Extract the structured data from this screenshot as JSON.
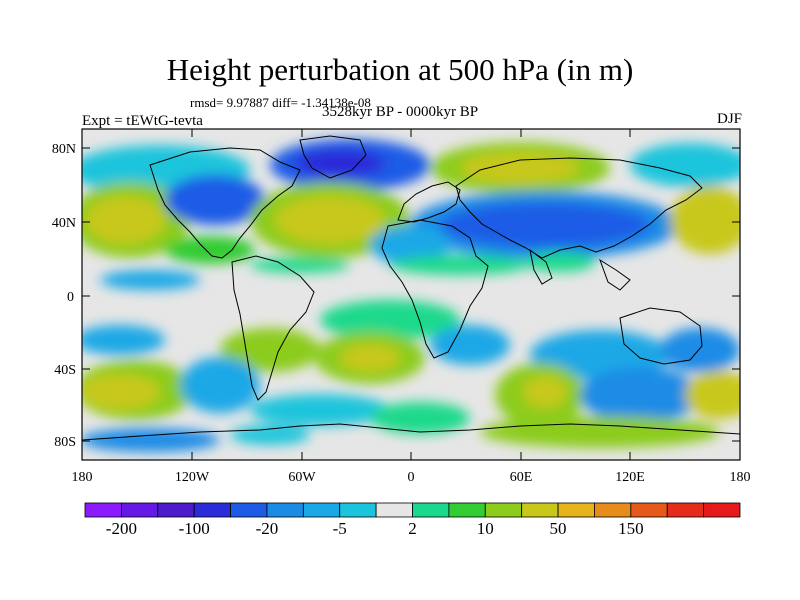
{
  "title": "Height perturbation at 500 hPa (in m)",
  "stats": "rmsd= 9.97887 diff= -1.34138e-08",
  "period": "3528kyr BP - 0000kyr BP",
  "experiment": "Expt = tEWtG-tevta",
  "season": "DJF",
  "lat_labels": [
    "80N",
    "40N",
    "0",
    "40S",
    "80S"
  ],
  "lon_labels": [
    "180",
    "120W",
    "60W",
    "0",
    "60E",
    "120E",
    "180"
  ],
  "colorbar": {
    "colors": [
      "#8c1aff",
      "#6619e6",
      "#4d1acc",
      "#2b2bd9",
      "#1f5ce6",
      "#1a8ce6",
      "#1aa8e6",
      "#1ac4dc",
      "#e6e6e6",
      "#1ad98c",
      "#33cc33",
      "#8ccc1a",
      "#c8c81a",
      "#e6b41a",
      "#e68c1a",
      "#e6591a",
      "#e62b1a",
      "#e61a1a"
    ],
    "labels": [
      "-200",
      "-100",
      "-20",
      "-5",
      "2",
      "10",
      "50",
      "150"
    ],
    "label_after_index": [
      0,
      2,
      4,
      6,
      8,
      10,
      12,
      14
    ]
  }
}
